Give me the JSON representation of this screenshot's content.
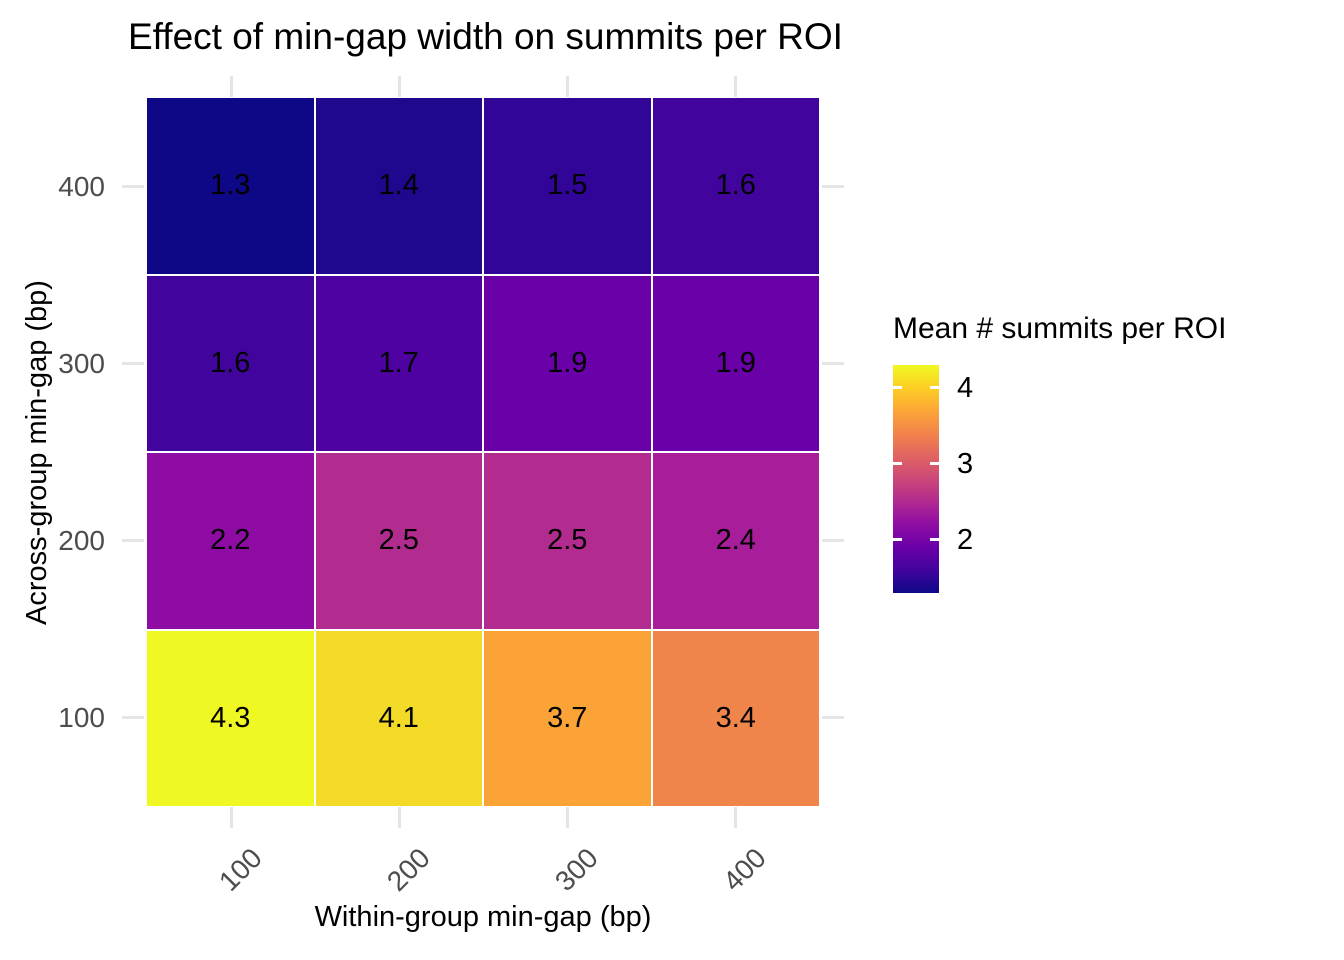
{
  "chart_data": {
    "type": "heatmap",
    "title": "Effect of min-gap width on summits per ROI",
    "xlabel": "Within-group min-gap (bp)",
    "ylabel": "Across-group min-gap (bp)",
    "x_categories": [
      "100",
      "200",
      "300",
      "400"
    ],
    "y_categories_top_to_bottom": [
      "400",
      "300",
      "200",
      "100"
    ],
    "rows_top_to_bottom": [
      {
        "y": "400",
        "values": [
          1.3,
          1.4,
          1.5,
          1.6
        ],
        "colors": [
          "#0e0887",
          "#20078e",
          "#300597",
          "#41049d"
        ]
      },
      {
        "y": "300",
        "values": [
          1.6,
          1.7,
          1.9,
          1.9
        ],
        "colors": [
          "#41049d",
          "#4e02a2",
          "#6a00a8",
          "#6a00a8"
        ]
      },
      {
        "y": "200",
        "values": [
          2.2,
          2.5,
          2.5,
          2.4
        ],
        "colors": [
          "#8e0ca4",
          "#b22b8f",
          "#b22b8f",
          "#a81e9a"
        ]
      },
      {
        "y": "100",
        "values": [
          4.3,
          4.1,
          3.7,
          3.4
        ],
        "colors": [
          "#f0f824",
          "#f3da26",
          "#fba337",
          "#f0854c"
        ]
      }
    ],
    "value_format_decimals": 1,
    "grid": true,
    "legend": {
      "position": "right",
      "title": "Mean # summits per ROI",
      "domain": [
        1.3,
        4.3
      ],
      "ticks": [
        {
          "label": "4",
          "value": 4,
          "frac_from_bottom": 0.9
        },
        {
          "label": "3",
          "value": 3,
          "frac_from_bottom": 0.567
        },
        {
          "label": "2",
          "value": 2,
          "frac_from_bottom": 0.233
        }
      ],
      "gradient_bottom_to_top": [
        "#0d0887",
        "#41049d",
        "#6a00a8",
        "#8f0da4",
        "#b12a90",
        "#cc4778",
        "#e16462",
        "#f2844b",
        "#fca636",
        "#fcce25",
        "#f0f921"
      ]
    },
    "style": {
      "background": "#ffffff",
      "axis_text_color": "#4d4d4d",
      "title_color": "#000000",
      "cell_label_color": "#000000",
      "grid_stub_color": "#e5e5e5"
    }
  }
}
